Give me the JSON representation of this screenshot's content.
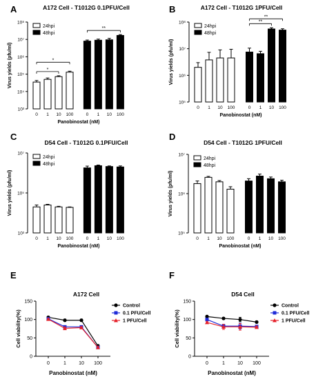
{
  "chart_data": [
    {
      "panel": "A",
      "type": "bar",
      "title": "A172 Cell - T1012G 0.1PFU/Cell",
      "xlabel": "Panobinostat (nM)",
      "ylabel": "Virus yields (pfu/ml)",
      "yscale": "log",
      "ylim": [
        1000,
        100000000
      ],
      "yticks": [
        "10³",
        "10⁴",
        "10⁵",
        "10⁶",
        "10⁷",
        "10⁸"
      ],
      "groups": [
        {
          "name": "24hpi",
          "categories": [
            "0",
            "1",
            "10",
            "100"
          ],
          "values": [
            35000,
            50000,
            72000,
            130000
          ],
          "errors": [
            8000,
            10000,
            9000,
            18000
          ]
        },
        {
          "name": "48hpi",
          "categories": [
            "0",
            "1",
            "10",
            "100"
          ],
          "values": [
            8000000,
            9000000,
            9500000,
            17000000
          ],
          "errors": [
            1200000,
            1400000,
            2000000,
            2000000
          ]
        }
      ],
      "legend": [
        "24hpi",
        "48hpi"
      ],
      "legend_position": "top-left",
      "annotations": [
        {
          "text": "*",
          "from": "24hpi 0",
          "to": "24hpi 10"
        },
        {
          "text": "*",
          "from": "24hpi 0",
          "to": "24hpi 100"
        },
        {
          "text": "**",
          "from": "48hpi 0",
          "to": "48hpi 100"
        }
      ]
    },
    {
      "panel": "B",
      "type": "bar",
      "title": "A172 Cell - T1012G 1PFU/Cell",
      "xlabel": "Panobinostat (nM)",
      "ylabel": "Virus yields (pfu/ml)",
      "yscale": "log",
      "ylim": [
        100000,
        100000000
      ],
      "yticks": [
        "10⁵",
        "10⁶",
        "10⁷",
        "10⁸"
      ],
      "groups": [
        {
          "name": "24hpi",
          "categories": [
            "0",
            "1",
            "10",
            "100"
          ],
          "values": [
            2000000,
            3800000,
            4500000,
            4500000
          ],
          "errors": [
            1000000,
            3500000,
            4500000,
            5000000
          ]
        },
        {
          "name": "48hpi",
          "categories": [
            "0",
            "1",
            "10",
            "100"
          ],
          "values": [
            7500000,
            6500000,
            55000000,
            50000000
          ],
          "errors": [
            3000000,
            1500000,
            6000000,
            6000000
          ]
        }
      ],
      "legend": [
        "24hpi",
        "48hpi"
      ],
      "legend_position": "top-left",
      "annotations": [
        {
          "text": "**",
          "from": "48hpi 0",
          "to": "48hpi 10"
        },
        {
          "text": "**",
          "from": "48hpi 0",
          "to": "48hpi 100"
        }
      ]
    },
    {
      "panel": "C",
      "type": "bar",
      "title": "D54 Cell - T1012G  0.1PFU/Cell",
      "xlabel": "Panobinostat (nM)",
      "ylabel": "Virus yields (pfu/ml)",
      "yscale": "log",
      "ylim": [
        1000,
        10000000
      ],
      "yticks": [
        "10³",
        "10⁵",
        "10⁷"
      ],
      "groups": [
        {
          "name": "24hpi",
          "categories": [
            "0",
            "1",
            "10",
            "100"
          ],
          "values": [
            20000,
            25000,
            20000,
            19000
          ],
          "errors": [
            5000,
            2000,
            1500,
            1000
          ]
        },
        {
          "name": "48hpi",
          "categories": [
            "0",
            "1",
            "10",
            "100"
          ],
          "values": [
            1800000,
            2300000,
            2100000,
            2000000
          ],
          "errors": [
            400000,
            200000,
            150000,
            250000
          ]
        }
      ],
      "legend": [
        "24hpi",
        "48hpi"
      ],
      "legend_position": "top-left",
      "annotations": []
    },
    {
      "panel": "D",
      "type": "bar",
      "title": "D54 Cell - T1012G 1PFU/Cell",
      "xlabel": "Panobinostat (nM)",
      "ylabel": "Virus yields (pfu/ml)",
      "yscale": "log",
      "ylim": [
        100000,
        10000000
      ],
      "yticks": [
        "10⁵",
        "10⁶",
        "10⁷"
      ],
      "groups": [
        {
          "name": "24hpi",
          "categories": [
            "0",
            "1",
            "10",
            "100"
          ],
          "values": [
            1800000,
            2600000,
            2000000,
            1300000
          ],
          "errors": [
            300000,
            150000,
            150000,
            200000
          ]
        },
        {
          "name": "48hpi",
          "categories": [
            "0",
            "1",
            "10",
            "100"
          ],
          "values": [
            2100000,
            2800000,
            2400000,
            2000000
          ],
          "errors": [
            300000,
            350000,
            250000,
            200000
          ]
        }
      ],
      "legend": [
        "24hpi",
        "48hpi"
      ],
      "legend_position": "top-left",
      "annotations": []
    },
    {
      "panel": "E",
      "type": "line",
      "title": "A172 Cell",
      "xlabel": "Panobinostat (nM)",
      "ylabel": "Cell viability(%)",
      "x": [
        "0",
        "1",
        "10",
        "100"
      ],
      "ylim": [
        0,
        150
      ],
      "yticks": [
        0,
        50,
        100,
        150
      ],
      "series": [
        {
          "name": "Control",
          "values": [
            106,
            98,
            98,
            28
          ],
          "errors": [
            2,
            3,
            3,
            4
          ],
          "color": "#000000",
          "marker": "circle"
        },
        {
          "name": "0.1 PFU/Cell",
          "values": [
            102,
            80,
            80,
            24
          ],
          "errors": [
            2,
            3,
            3,
            3
          ],
          "color": "#1f2bd8",
          "marker": "square"
        },
        {
          "name": "1 PFU/Cell",
          "values": [
            101,
            76,
            78,
            24
          ],
          "errors": [
            2,
            4,
            3,
            3
          ],
          "color": "#e5202a",
          "marker": "triangle"
        }
      ],
      "legend_position": "top-right"
    },
    {
      "panel": "F",
      "type": "line",
      "title": "D54 Cell",
      "xlabel": "Panobinostat (nM)",
      "ylabel": "Cell viability(%)",
      "x": [
        "0",
        "1",
        "10",
        "100"
      ],
      "ylim": [
        0,
        150
      ],
      "yticks": [
        0,
        50,
        100,
        150
      ],
      "series": [
        {
          "name": "Control",
          "values": [
            108,
            103,
            100,
            93
          ],
          "errors": [
            3,
            3,
            6,
            3
          ],
          "color": "#000000",
          "marker": "circle"
        },
        {
          "name": "0.1 PFU/Cell",
          "values": [
            100,
            82,
            82,
            81
          ],
          "errors": [
            3,
            5,
            8,
            3
          ],
          "color": "#1f2bd8",
          "marker": "square"
        },
        {
          "name": "1 PFU/Cell",
          "values": [
            92,
            80,
            80,
            79
          ],
          "errors": [
            2,
            7,
            9,
            3
          ],
          "color": "#e5202a",
          "marker": "triangle"
        }
      ],
      "legend_position": "top-right"
    }
  ]
}
